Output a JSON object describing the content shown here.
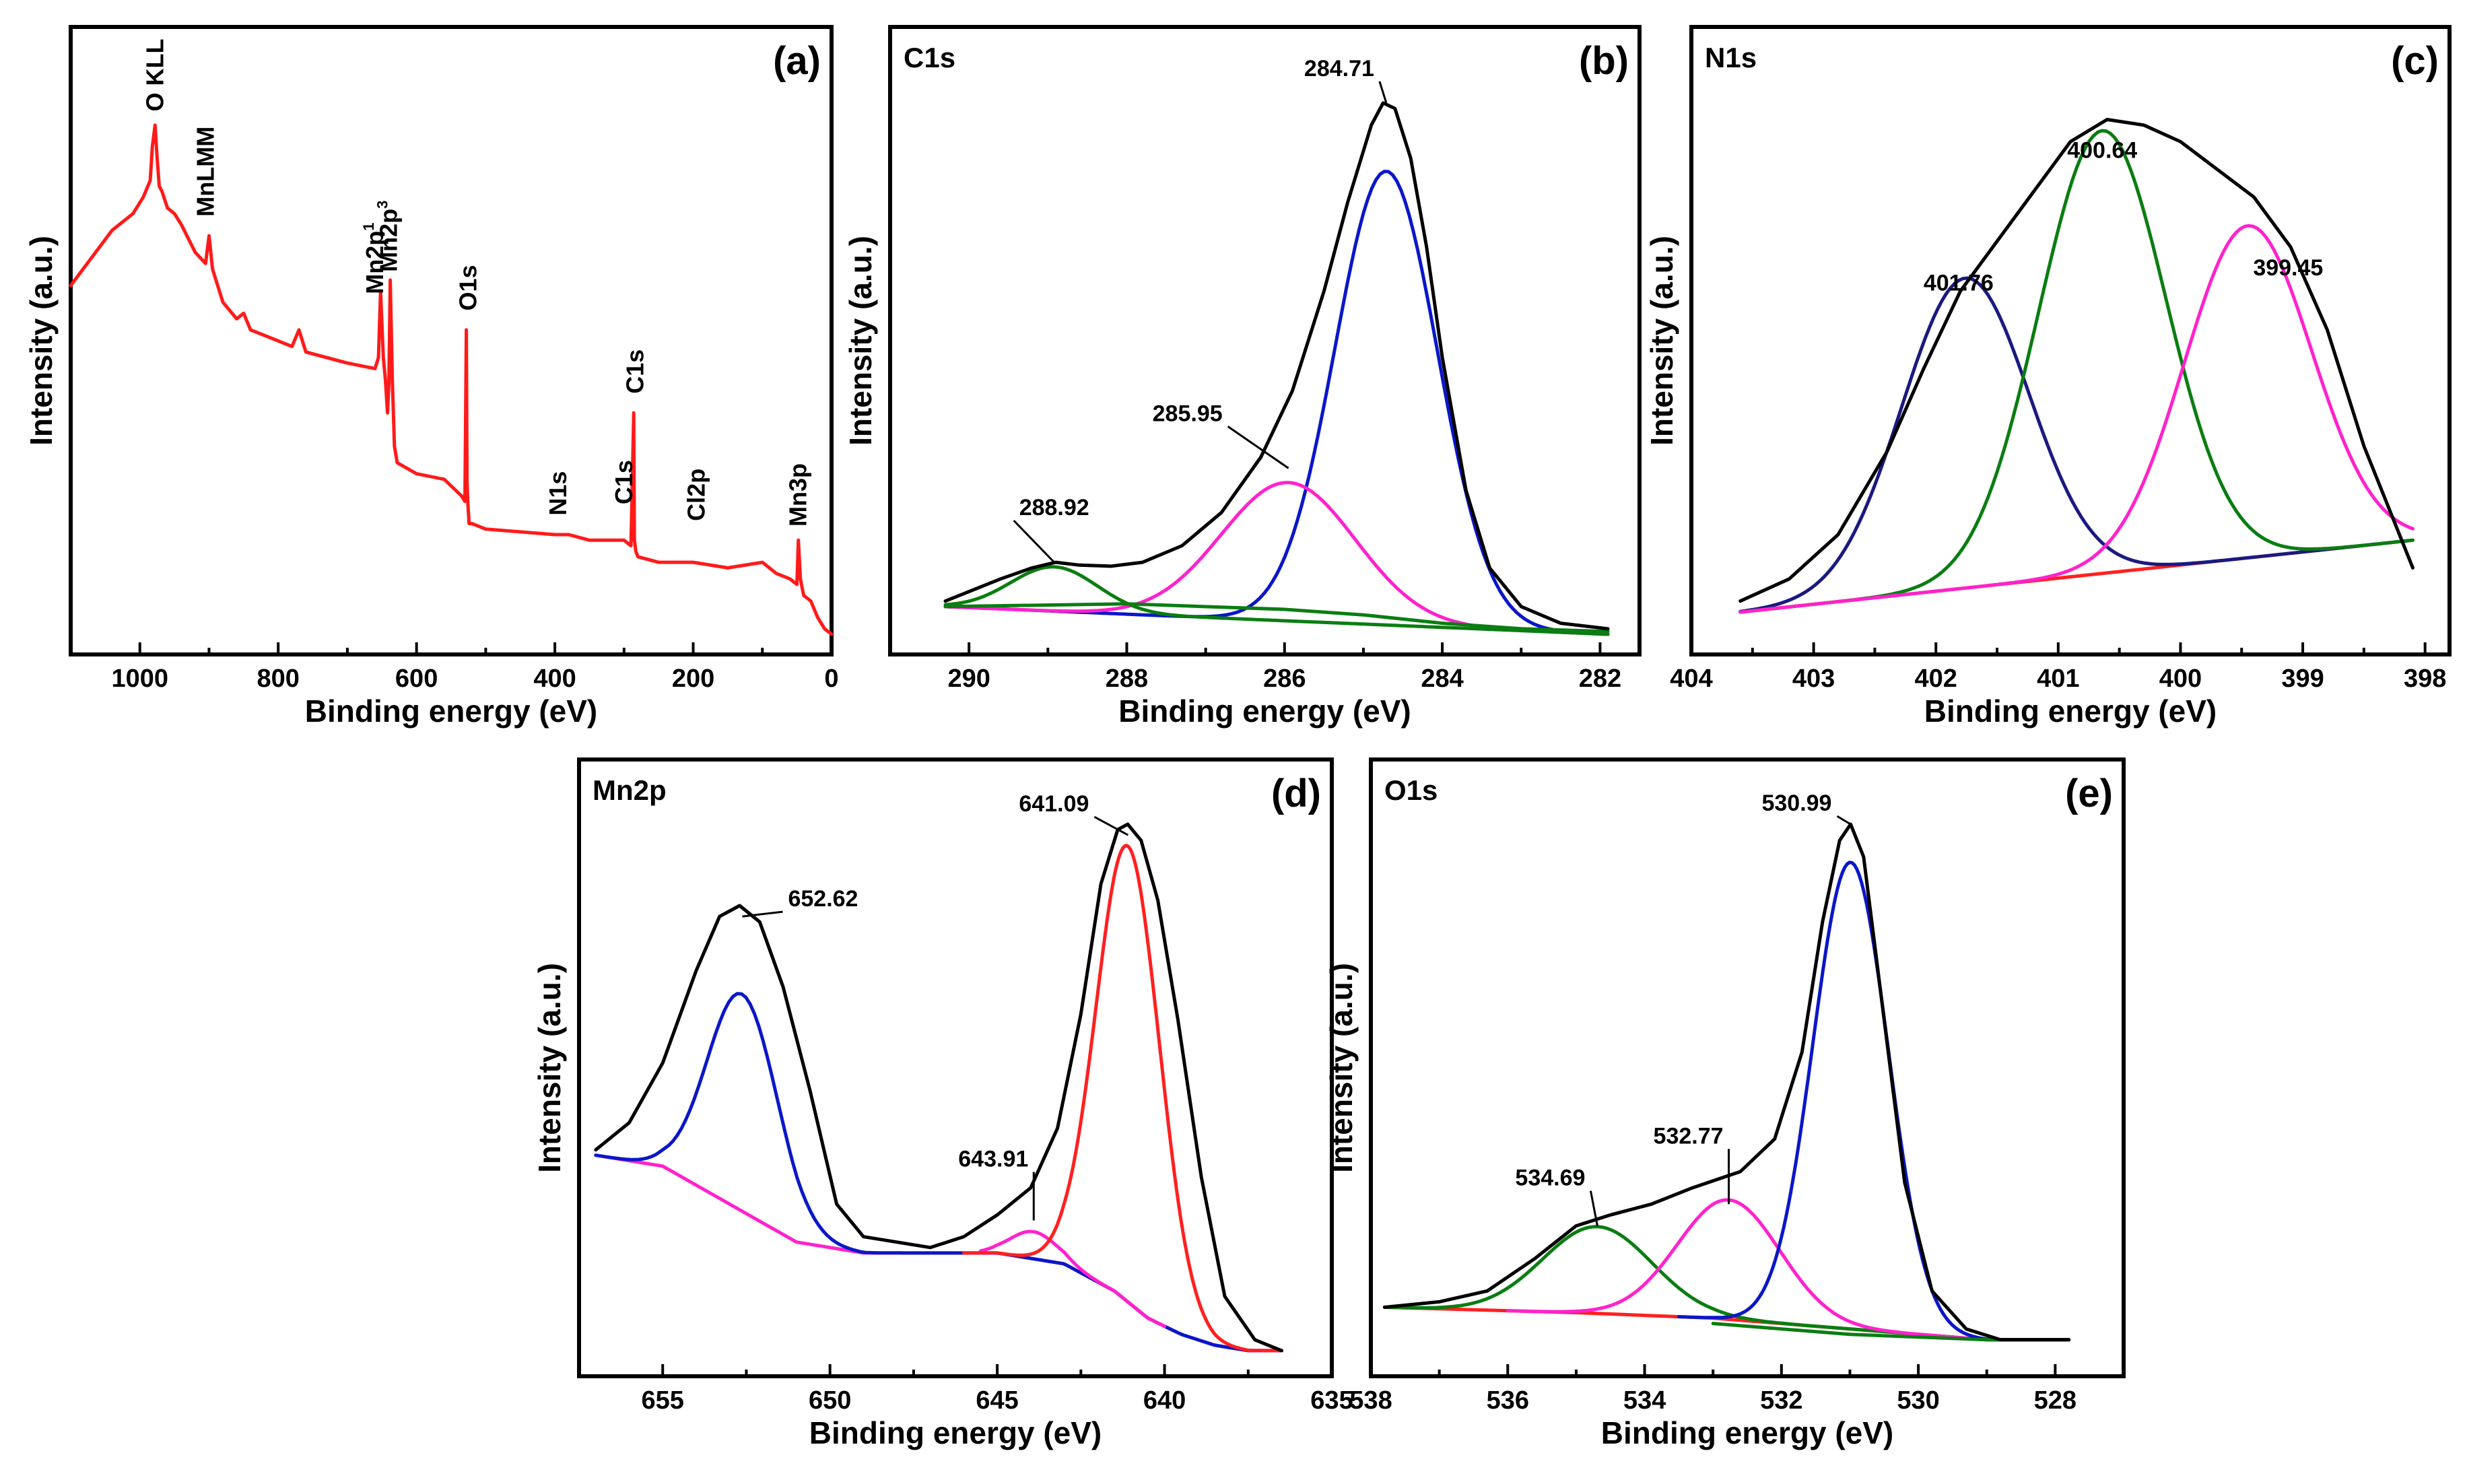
{
  "chart_data": [
    {
      "id": "a",
      "type": "line",
      "panel_label": "(a)",
      "title": "",
      "xlabel": "Binding energy (eV)",
      "ylabel": "Intensity (a.u.)",
      "xlim": [
        1100,
        0
      ],
      "ylim": [
        0,
        100
      ],
      "xticks": [
        1000,
        800,
        600,
        400,
        200,
        0
      ],
      "series": [
        {
          "name": "survey",
          "color": "#ff1a1a",
          "kind": "line",
          "x": [
            1100,
            1070,
            1040,
            1010,
            995,
            985,
            982,
            978,
            975,
            972,
            968,
            960,
            950,
            940,
            920,
            905,
            900,
            895,
            880,
            860,
            850,
            840,
            800,
            780,
            770,
            765,
            760,
            700,
            660,
            655,
            652,
            648,
            645,
            642,
            640,
            638,
            635,
            632,
            628,
            600,
            560,
            535,
            530,
            528,
            527,
            526,
            524,
            520,
            500,
            400,
            380,
            350,
            300,
            290,
            286,
            285,
            284,
            283,
            280,
            250,
            200,
            150,
            100,
            80,
            60,
            50,
            48,
            45,
            42,
            40,
            30,
            20,
            10,
            0
          ],
          "y": [
            63,
            68,
            73,
            76,
            79,
            82,
            88,
            92,
            86,
            81,
            80,
            77,
            76,
            74,
            69,
            67,
            72,
            66,
            60,
            57,
            58,
            55,
            53,
            52,
            55,
            53,
            51,
            49,
            48,
            50,
            62,
            50,
            46,
            40,
            45,
            64,
            46,
            34,
            31,
            29,
            28,
            25,
            24,
            55,
            28,
            24,
            20,
            20,
            19,
            18,
            18,
            17,
            17,
            16,
            40,
            17,
            16,
            15,
            14,
            13,
            13,
            12,
            13,
            11,
            10,
            9,
            17,
            10,
            8,
            7,
            6,
            3,
            1,
            0
          ]
        }
      ],
      "survey_labels": [
        {
          "text": "O KLL",
          "x": 978,
          "y": 93
        },
        {
          "text": "MnLMM",
          "x": 905,
          "y": 74
        },
        {
          "text": "Mn2p",
          "x": 660,
          "y": 60
        },
        {
          "text": "Mn2p",
          "x": 640,
          "y": 64
        },
        {
          "text": "O1s",
          "x": 525,
          "y": 57
        },
        {
          "text": "N1s",
          "x": 395,
          "y": 20
        },
        {
          "text": "C1s",
          "x": 300,
          "y": 22
        },
        {
          "text": "C1s",
          "x": 284,
          "y": 42
        },
        {
          "text": "Cl2p",
          "x": 195,
          "y": 19
        },
        {
          "text": "Mn3p",
          "x": 48,
          "y": 18
        }
      ],
      "superscripts": [
        "1",
        "3"
      ]
    },
    {
      "id": "b",
      "type": "line",
      "panel_label": "(b)",
      "title": "C1s",
      "xlabel": "Binding energy (eV)",
      "ylabel": "Intensity (a.u.)",
      "xlim": [
        291,
        281.5
      ],
      "ylim": [
        0,
        100
      ],
      "xticks": [
        290,
        288,
        286,
        284,
        282
      ],
      "series": [
        {
          "name": "fit 284.71",
          "color": "#0a17c8",
          "kind": "gauss",
          "base": [
            5,
            0
          ],
          "center": 284.71,
          "amp": 82,
          "sigma": 0.65,
          "xrange": [
            290.3,
            281.9
          ]
        },
        {
          "name": "fit 285.95",
          "color": "#ff22cc",
          "kind": "gauss",
          "base": [
            5,
            0
          ],
          "center": 285.95,
          "amp": 25,
          "sigma": 0.85,
          "xrange": [
            290.3,
            281.9
          ]
        },
        {
          "name": "fit 288.92",
          "color": "#0b7d12",
          "kind": "gauss",
          "base": [
            5,
            0
          ],
          "center": 288.92,
          "amp": 8,
          "sigma": 0.55,
          "xrange": [
            290.3,
            281.9
          ]
        },
        {
          "name": "background",
          "color": "#0b7d12",
          "kind": "line",
          "x": [
            290.3,
            288,
            286,
            285,
            284,
            283,
            281.9
          ],
          "y": [
            5,
            5.5,
            4.5,
            3.5,
            2,
            1,
            0.5
          ]
        },
        {
          "name": "envelope",
          "color": "#000000",
          "kind": "line",
          "x": [
            290.3,
            289.6,
            289.2,
            288.9,
            288.6,
            288.2,
            287.8,
            287.3,
            286.8,
            286.3,
            285.9,
            285.5,
            285.2,
            284.9,
            284.75,
            284.6,
            284.4,
            284.2,
            284.0,
            283.7,
            283.4,
            283.0,
            282.5,
            281.9
          ],
          "y": [
            6,
            10,
            12,
            13,
            12.5,
            12.3,
            13,
            16,
            22,
            32,
            44,
            62,
            78,
            92,
            96,
            95,
            86,
            70,
            50,
            26,
            12,
            5,
            2,
            1
          ]
        }
      ],
      "annotations": [
        {
          "text": "284.71",
          "x": 284.71,
          "y": 96
        },
        {
          "text": "285.95",
          "x": 285.95,
          "y": 30
        },
        {
          "text": "288.92",
          "x": 288.92,
          "y": 13
        }
      ]
    },
    {
      "id": "c",
      "type": "line",
      "panel_label": "(c)",
      "title": "N1s",
      "xlabel": "Binding energy (eV)",
      "ylabel": "Intensity (a.u.)",
      "xlim": [
        404,
        397.8
      ],
      "ylim": [
        0,
        100
      ],
      "xticks": [
        404,
        403,
        402,
        401,
        400,
        399,
        398
      ],
      "series": [
        {
          "name": "background",
          "color": "#ff2020",
          "kind": "line",
          "x": [
            403.6,
            398.1
          ],
          "y": [
            4,
            17
          ]
        },
        {
          "name": "fit 401.76",
          "color": "#1a1a80",
          "kind": "gauss",
          "base": [
            4,
            17
          ],
          "center": 401.76,
          "amp": 56,
          "sigma": 0.52,
          "xrange": [
            403.6,
            398.1
          ]
        },
        {
          "name": "fit 400.64",
          "color": "#0b7d12",
          "kind": "gauss",
          "base": [
            4,
            17
          ],
          "center": 400.64,
          "amp": 80,
          "sigma": 0.52,
          "xrange": [
            403.6,
            398.1
          ]
        },
        {
          "name": "fit 399.45",
          "color": "#ff22cc",
          "kind": "gauss",
          "base": [
            4,
            17
          ],
          "center": 399.45,
          "amp": 60,
          "sigma": 0.52,
          "xrange": [
            403.6,
            398.1
          ]
        },
        {
          "name": "envelope",
          "color": "#000000",
          "kind": "line",
          "x": [
            403.6,
            403.2,
            402.8,
            402.4,
            402.1,
            401.8,
            401.5,
            401.2,
            400.9,
            400.6,
            400.3,
            400.0,
            399.7,
            399.4,
            399.1,
            398.8,
            398.5,
            398.1
          ],
          "y": [
            6,
            10,
            18,
            33,
            48,
            62,
            71,
            80,
            89,
            93,
            92,
            89,
            84,
            79,
            70,
            55,
            34,
            12
          ]
        }
      ],
      "annotations": [
        {
          "text": "401.76",
          "x": 401.76,
          "y": 56
        },
        {
          "text": "400.64",
          "x": 400.64,
          "y": 80
        },
        {
          "text": "399.45",
          "x": 399.45,
          "y": 60
        }
      ]
    },
    {
      "id": "d",
      "type": "line",
      "panel_label": "(d)",
      "title": "Mn2p",
      "xlabel": "Binding energy (eV)",
      "ylabel": "Intensity (a.u.)",
      "xlim": [
        657.5,
        635
      ],
      "ylim": [
        0,
        100
      ],
      "xticks": [
        655,
        650,
        645,
        640,
        635
      ],
      "series": [
        {
          "name": "background",
          "color": "#ff22cc",
          "kind": "line",
          "x": [
            657,
            655,
            653,
            651,
            649,
            647,
            645,
            643,
            641.5,
            640.5,
            639.5,
            638.5,
            637.5,
            636.5
          ],
          "y": [
            37,
            35,
            28,
            21,
            19,
            19,
            19,
            17,
            12,
            7,
            4,
            2,
            1,
            1
          ]
        },
        {
          "name": "fit 652.62",
          "color": "#0a17c8",
          "kind": "gauss_on_bg",
          "center": 652.62,
          "amp": 40,
          "sigma": 1.05,
          "xrange": [
            657,
            636.5
          ]
        },
        {
          "name": "fit 643.91",
          "color": "#ff22cc",
          "kind": "gauss_on_bg",
          "center": 643.91,
          "amp": 5,
          "sigma": 0.7,
          "xrange": [
            645.5,
            640
          ]
        },
        {
          "name": "fit 641.09",
          "color": "#ff2020",
          "kind": "gauss_on_bg",
          "center": 641.09,
          "amp": 84,
          "sigma": 0.95,
          "xrange": [
            646,
            636.5
          ]
        },
        {
          "name": "envelope",
          "color": "#000000",
          "kind": "line",
          "x": [
            657,
            656,
            655,
            654,
            653.3,
            652.7,
            652.1,
            651.4,
            650.6,
            649.8,
            649,
            647,
            646,
            645,
            644,
            643.2,
            642.5,
            641.9,
            641.4,
            641.1,
            640.7,
            640.2,
            639.6,
            638.9,
            638.2,
            637.3,
            636.5
          ],
          "y": [
            38,
            43,
            54,
            71,
            81,
            83,
            80,
            68,
            49,
            28,
            22,
            20,
            22,
            26,
            31,
            42,
            63,
            87,
            97,
            98,
            95,
            84,
            62,
            33,
            11,
            3,
            1
          ]
        }
      ],
      "annotations": [
        {
          "text": "641.09",
          "x": 641.09,
          "y": 96
        },
        {
          "text": "652.62",
          "x": 652.62,
          "y": 81
        },
        {
          "text": "643.91",
          "x": 643.91,
          "y": 25
        }
      ]
    },
    {
      "id": "e",
      "type": "line",
      "panel_label": "(e)",
      "title": "O1s",
      "xlabel": "Binding energy (eV)",
      "ylabel": "Intensity (a.u.)",
      "xlim": [
        538,
        527
      ],
      "ylim": [
        0,
        100
      ],
      "xticks": [
        538,
        536,
        534,
        532,
        530,
        528
      ],
      "series": [
        {
          "name": "background",
          "color": "#ff2020",
          "kind": "line",
          "x": [
            537.8,
            535,
            533,
            531,
            529,
            527.8
          ],
          "y": [
            9,
            8,
            7,
            5,
            3,
            3
          ]
        },
        {
          "name": "fit 534.69",
          "color": "#0b7d12",
          "kind": "gauss_on_bg2",
          "center": 534.69,
          "amp": 16,
          "sigma": 0.8,
          "xrange": [
            537.8,
            527.8
          ]
        },
        {
          "name": "fit 532.77",
          "color": "#ff22cc",
          "kind": "gauss_on_bg2",
          "center": 532.77,
          "amp": 22,
          "sigma": 0.75,
          "xrange": [
            536,
            527.8
          ]
        },
        {
          "name": "fit 530.99",
          "color": "#0a17c8",
          "kind": "gauss_on_bg2",
          "center": 530.99,
          "amp": 86,
          "sigma": 0.55,
          "xrange": [
            533.5,
            527.8
          ]
        },
        {
          "name": "background tail",
          "color": "#0b7d12",
          "kind": "line",
          "x": [
            533,
            531,
            529,
            527.8
          ],
          "y": [
            6,
            4,
            3,
            3
          ]
        },
        {
          "name": "envelope",
          "color": "#000000",
          "kind": "line",
          "x": [
            537.8,
            537,
            536.3,
            535.6,
            535,
            534.5,
            533.9,
            533.3,
            532.6,
            532.1,
            531.7,
            531.4,
            531.15,
            530.99,
            530.8,
            530.5,
            530.2,
            529.8,
            529.3,
            528.8,
            527.8
          ],
          "y": [
            9,
            10,
            12,
            18,
            24,
            26,
            28,
            31,
            34,
            40,
            56,
            80,
            95,
            98,
            92,
            62,
            32,
            12,
            5,
            3,
            3
          ]
        }
      ],
      "annotations": [
        {
          "text": "530.99",
          "x": 530.99,
          "y": 98
        },
        {
          "text": "532.77",
          "x": 532.77,
          "y": 28
        },
        {
          "text": "534.69",
          "x": 534.69,
          "y": 24
        }
      ]
    }
  ]
}
